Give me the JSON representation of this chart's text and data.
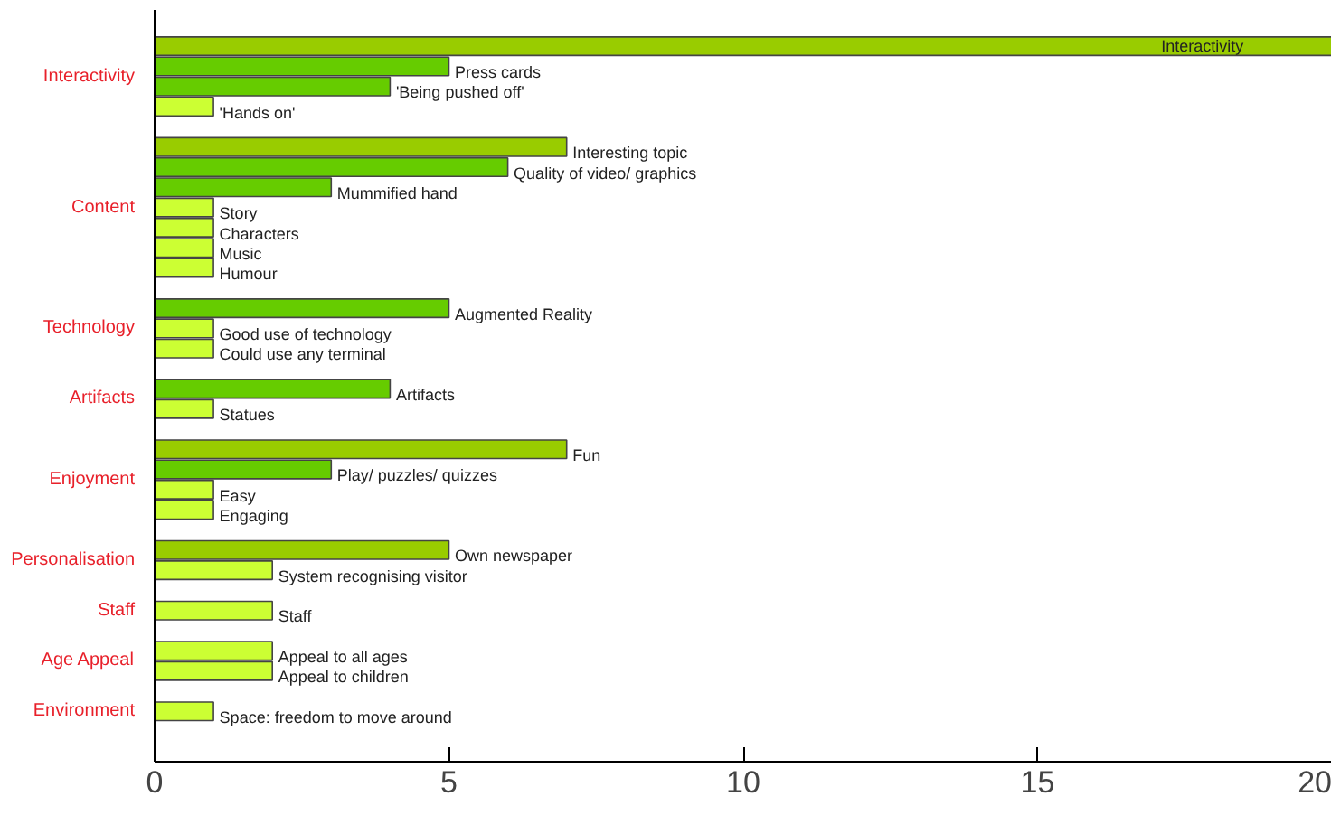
{
  "chart_data": {
    "type": "bar",
    "orientation": "horizontal",
    "categories": [
      "Interactivity",
      "Press cards",
      "'Being pushed off'",
      "'Hands on'",
      null,
      "Interesting topic",
      "Quality of video/ graphics",
      "Mummified hand",
      "Story",
      "Characters",
      "Music",
      "Humour",
      null,
      "Augmented Reality",
      "Good use of technology",
      "Could use any terminal",
      null,
      "Artifacts",
      "Statues",
      null,
      "Fun",
      "Play/ puzzles/ quizzes",
      "Easy",
      "Engaging",
      null,
      "Own newspaper",
      "System recognising visitor",
      null,
      "Staff",
      null,
      "Appeal to all ages",
      "Appeal to children",
      null,
      "Space: freedom to move around"
    ],
    "values": [
      20,
      5,
      4,
      1,
      null,
      7,
      6,
      3,
      1,
      1,
      1,
      1,
      null,
      5,
      1,
      1,
      null,
      4,
      1,
      null,
      7,
      3,
      1,
      1,
      null,
      5,
      2,
      null,
      2,
      null,
      2,
      2,
      null,
      1
    ],
    "colors": [
      "#99cc00",
      "#66cc00",
      "#66cc00",
      "#ccff33",
      null,
      "#99cc00",
      "#66cc00",
      "#66cc00",
      "#ccff33",
      "#ccff33",
      "#ccff33",
      "#ccff33",
      null,
      "#66cc00",
      "#ccff33",
      "#ccff33",
      null,
      "#66cc00",
      "#ccff33",
      null,
      "#99cc00",
      "#66cc00",
      "#ccff33",
      "#ccff33",
      null,
      "#99cc00",
      "#ccff33",
      null,
      "#ccff33",
      null,
      "#ccff33",
      "#ccff33",
      null,
      "#ccff33"
    ],
    "annotations": [
      "Interactivity",
      "Content",
      "Technology",
      "Artifacts",
      "Enjoyment",
      "Personalisation",
      "Staff",
      "Age Appeal",
      "Environment"
    ],
    "xlim": [
      0,
      20
    ],
    "xticks": [
      0,
      5,
      10,
      15,
      20
    ],
    "grid": false
  }
}
